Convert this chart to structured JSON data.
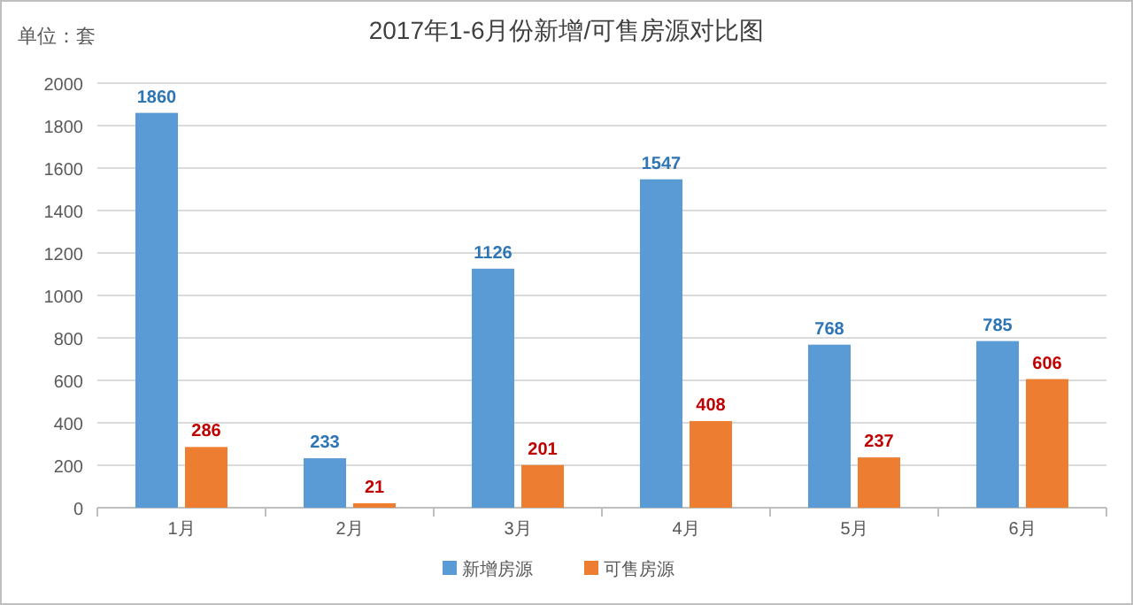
{
  "chart_data": {
    "type": "bar",
    "title": "2017年1-6月份新增/可售房源对比图",
    "annotations": [
      "单位：套"
    ],
    "categories": [
      "1月",
      "2月",
      "3月",
      "4月",
      "5月",
      "6月"
    ],
    "series": [
      {
        "name": "新增房源",
        "color": "#5b9bd5",
        "values": [
          1860,
          233,
          1126,
          1547,
          768,
          785
        ]
      },
      {
        "name": "可售房源",
        "color": "#ed7d31",
        "values": [
          286,
          21,
          201,
          408,
          237,
          606
        ]
      }
    ],
    "ylim": [
      0,
      2000
    ],
    "yticks": [
      0,
      200,
      400,
      600,
      800,
      1000,
      1200,
      1400,
      1600,
      1800,
      2000
    ],
    "grid": "y",
    "legend": "bottom",
    "data_labels": true
  }
}
